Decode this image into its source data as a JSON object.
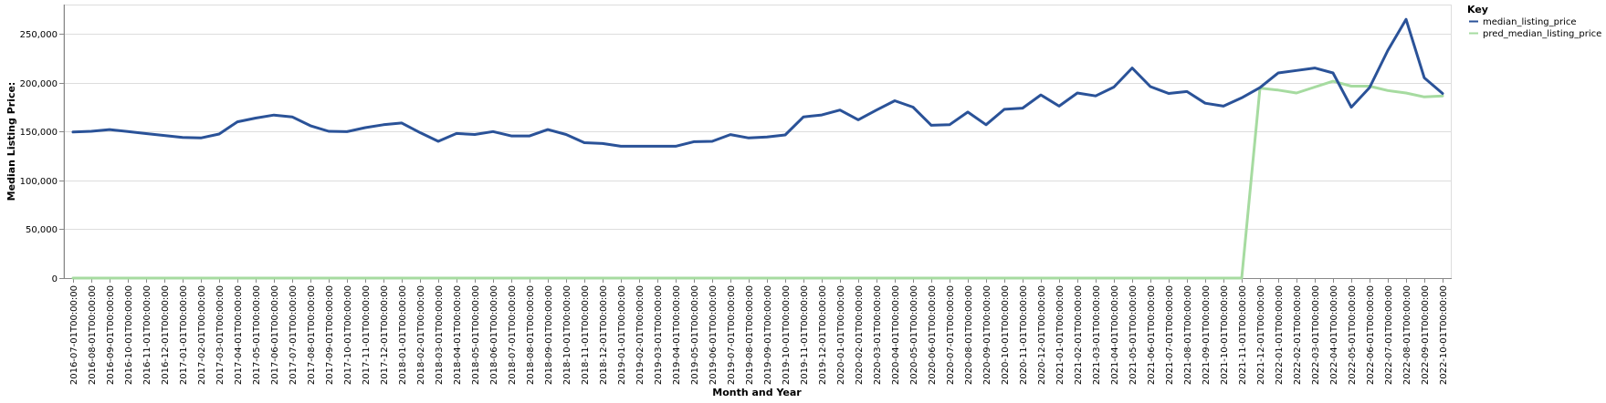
{
  "chart_data": {
    "type": "line",
    "title": "",
    "xlabel": "Month and Year",
    "ylabel": "Median Listing Price:",
    "ylim": [
      0,
      280000
    ],
    "y_ticks": [
      0,
      50000,
      100000,
      150000,
      200000,
      250000
    ],
    "y_tick_labels": [
      "0",
      "50,000",
      "100,000",
      "150,000",
      "200,000",
      "250,000"
    ],
    "grid": true,
    "legend_title": "Key",
    "legend_position": "top-right",
    "x": [
      "2016-07-01T00:00:00",
      "2016-08-01T00:00:00",
      "2016-09-01T00:00:00",
      "2016-10-01T00:00:00",
      "2016-11-01T00:00:00",
      "2016-12-01T00:00:00",
      "2017-01-01T00:00:00",
      "2017-02-01T00:00:00",
      "2017-03-01T00:00:00",
      "2017-04-01T00:00:00",
      "2017-05-01T00:00:00",
      "2017-06-01T00:00:00",
      "2017-07-01T00:00:00",
      "2017-08-01T00:00:00",
      "2017-09-01T00:00:00",
      "2017-10-01T00:00:00",
      "2017-11-01T00:00:00",
      "2017-12-01T00:00:00",
      "2018-01-01T00:00:00",
      "2018-02-01T00:00:00",
      "2018-03-01T00:00:00",
      "2018-04-01T00:00:00",
      "2018-05-01T00:00:00",
      "2018-06-01T00:00:00",
      "2018-07-01T00:00:00",
      "2018-08-01T00:00:00",
      "2018-09-01T00:00:00",
      "2018-10-01T00:00:00",
      "2018-11-01T00:00:00",
      "2018-12-01T00:00:00",
      "2019-01-01T00:00:00",
      "2019-02-01T00:00:00",
      "2019-03-01T00:00:00",
      "2019-04-01T00:00:00",
      "2019-05-01T00:00:00",
      "2019-06-01T00:00:00",
      "2019-07-01T00:00:00",
      "2019-08-01T00:00:00",
      "2019-09-01T00:00:00",
      "2019-10-01T00:00:00",
      "2019-11-01T00:00:00",
      "2019-12-01T00:00:00",
      "2020-01-01T00:00:00",
      "2020-02-01T00:00:00",
      "2020-03-01T00:00:00",
      "2020-04-01T00:00:00",
      "2020-05-01T00:00:00",
      "2020-06-01T00:00:00",
      "2020-07-01T00:00:00",
      "2020-08-01T00:00:00",
      "2020-09-01T00:00:00",
      "2020-10-01T00:00:00",
      "2020-11-01T00:00:00",
      "2020-12-01T00:00:00",
      "2021-01-01T00:00:00",
      "2021-02-01T00:00:00",
      "2021-03-01T00:00:00",
      "2021-04-01T00:00:00",
      "2021-05-01T00:00:00",
      "2021-06-01T00:00:00",
      "2021-07-01T00:00:00",
      "2021-08-01T00:00:00",
      "2021-09-01T00:00:00",
      "2021-10-01T00:00:00",
      "2021-11-01T00:00:00",
      "2021-12-01T00:00:00",
      "2022-01-01T00:00:00",
      "2022-02-01T00:00:00",
      "2022-03-01T00:00:00",
      "2022-04-01T00:00:00",
      "2022-05-01T00:00:00",
      "2022-06-01T00:00:00",
      "2022-07-01T00:00:00",
      "2022-08-01T00:00:00",
      "2022-09-01T00:00:00",
      "2022-10-01T00:00:00"
    ],
    "series": [
      {
        "name": "median_listing_price",
        "color": "#2a5298",
        "values": [
          149500,
          150300,
          152000,
          150000,
          147900,
          146000,
          144000,
          143500,
          147500,
          160000,
          163800,
          166900,
          165000,
          156000,
          150300,
          149900,
          154000,
          157000,
          158800,
          149000,
          140000,
          148000,
          147000,
          150000,
          145500,
          145500,
          152000,
          147000,
          138600,
          137800,
          135000,
          135000,
          135000,
          135000,
          139600,
          140000,
          146900,
          143500,
          144500,
          146500,
          165000,
          167000,
          172000,
          162000,
          172000,
          181500,
          175000,
          156400,
          157000,
          170000,
          157000,
          172800,
          174000,
          187500,
          176000,
          189500,
          186500,
          195500,
          215000,
          196000,
          189000,
          191000,
          179000,
          176000,
          184500,
          195000,
          210000,
          212500,
          215000,
          210000,
          174900,
          195000,
          233000,
          264900,
          205000,
          189000
        ]
      },
      {
        "name": "pred_median_listing_price",
        "color": "#a6dba0",
        "values": [
          0,
          0,
          0,
          0,
          0,
          0,
          0,
          0,
          0,
          0,
          0,
          0,
          0,
          0,
          0,
          0,
          0,
          0,
          0,
          0,
          0,
          0,
          0,
          0,
          0,
          0,
          0,
          0,
          0,
          0,
          0,
          0,
          0,
          0,
          0,
          0,
          0,
          0,
          0,
          0,
          0,
          0,
          0,
          0,
          0,
          0,
          0,
          0,
          0,
          0,
          0,
          0,
          0,
          0,
          0,
          0,
          0,
          0,
          0,
          0,
          0,
          0,
          0,
          0,
          0,
          194500,
          192500,
          189500,
          195500,
          201500,
          196500,
          196500,
          192000,
          189500,
          185500,
          186500
        ]
      }
    ]
  }
}
